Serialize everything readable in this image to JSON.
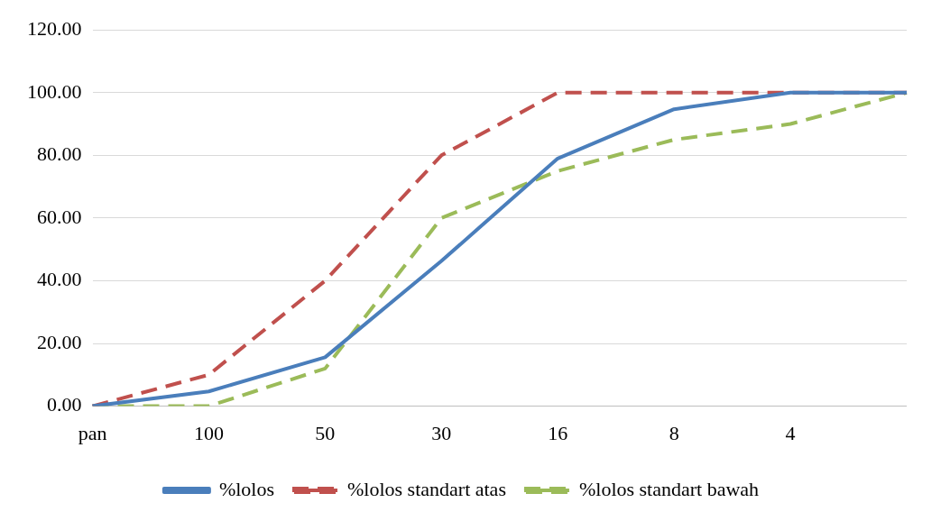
{
  "chart_data": {
    "type": "line",
    "categories": [
      "pan",
      "100",
      "50",
      "30",
      "16",
      "8",
      "4",
      null
    ],
    "series": [
      {
        "name": "%lolos",
        "color": "#4a7ebb",
        "line_style": "solid",
        "values": [
          0,
          4.7,
          15.6,
          46.3,
          79,
          94.7,
          100,
          100
        ]
      },
      {
        "name": "%lolos standart atas",
        "color": "#c0504d",
        "line_style": "dashed",
        "values": [
          0,
          10,
          40,
          80,
          100,
          100,
          100,
          100
        ]
      },
      {
        "name": "%lolos standart bawah",
        "color": "#9bbb59",
        "line_style": "dashed",
        "values": [
          0,
          0,
          12,
          60,
          75,
          85,
          90,
          100
        ]
      }
    ],
    "ylim": [
      0,
      120
    ],
    "yticks": [
      {
        "value": 0,
        "label": "0.00"
      },
      {
        "value": 20,
        "label": "20.00"
      },
      {
        "value": 40,
        "label": "40.00"
      },
      {
        "value": 60,
        "label": "60.00"
      },
      {
        "value": 80,
        "label": "80.00"
      },
      {
        "value": 100,
        "label": "100.00"
      },
      {
        "value": 120,
        "label": "120.00"
      }
    ],
    "grid": "y",
    "legend": "bottom",
    "marker": "none"
  }
}
